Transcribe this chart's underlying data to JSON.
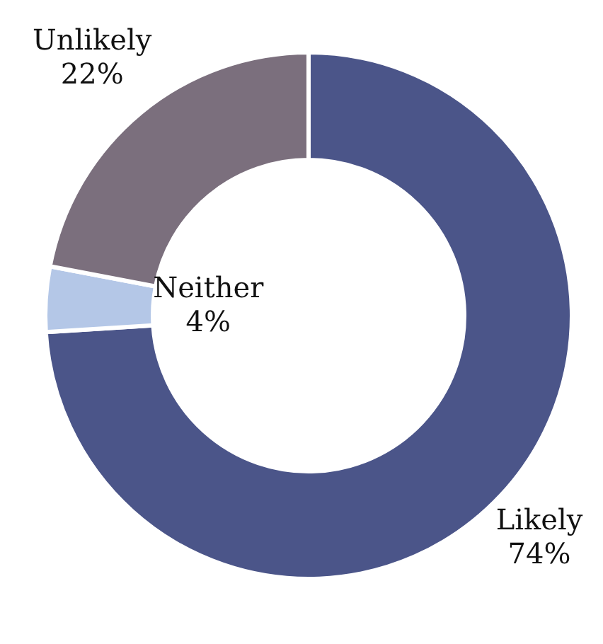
{
  "chart_data": {
    "type": "donut",
    "categories": [
      "Likely",
      "Neither",
      "Unlikely"
    ],
    "values": [
      74,
      4,
      22
    ],
    "value_labels": [
      "74%",
      "4%",
      "22%"
    ],
    "colors": [
      "#4b5589",
      "#b4c7e7",
      "#7b6f7d"
    ]
  }
}
